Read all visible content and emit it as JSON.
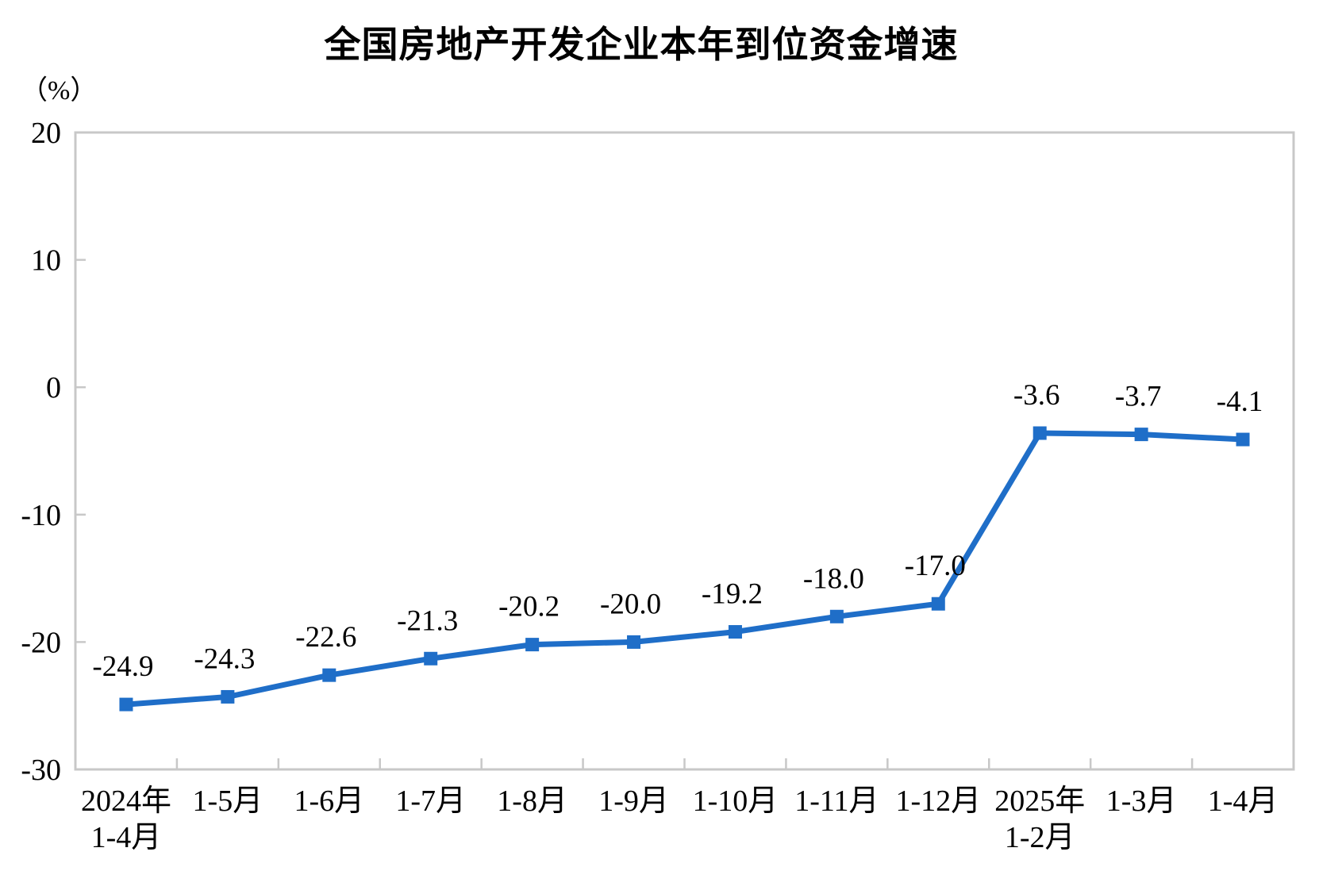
{
  "page": {
    "title": "全国房地产开发企业本年到位资金增速",
    "unit_label": "（%）"
  },
  "chart_data": {
    "type": "line",
    "title": "全国房地产开发企业本年到位资金增速",
    "ylabel": "（%）",
    "xlabel": "",
    "ylim": [
      -30,
      20
    ],
    "yticks": [
      20,
      10,
      0,
      -10,
      -20,
      -30
    ],
    "grid": false,
    "legend_position": "none",
    "categories": [
      "2024年\n1-4月",
      "1-5月",
      "1-6月",
      "1-7月",
      "1-8月",
      "1-9月",
      "1-10月",
      "1-11月",
      "1-12月",
      "2025年\n1-2月",
      "1-3月",
      "1-4月"
    ],
    "values": [
      -24.9,
      -24.3,
      -22.6,
      -21.3,
      -20.2,
      -20.0,
      -19.2,
      -18.0,
      -17.0,
      -3.6,
      -3.7,
      -4.1
    ],
    "point_labels": [
      "-24.9",
      "-24.3",
      "-22.6",
      "-21.3",
      "-20.2",
      "-20.0",
      "-19.2",
      "-18.0",
      "-17.0",
      "-3.6",
      "-3.7",
      "-4.1"
    ],
    "colors": {
      "line": "#1F6EC8",
      "marker": "#1F6EC8",
      "axis": "#C8C8C8",
      "text": "#000000"
    }
  }
}
